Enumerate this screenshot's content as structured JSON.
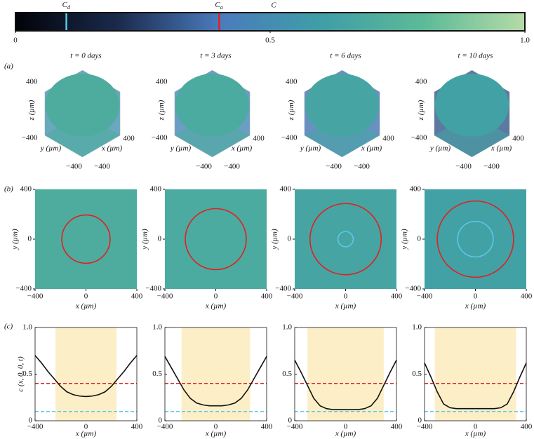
{
  "colorbar": {
    "range": [
      0,
      1
    ],
    "ticks": [
      0,
      0.5,
      {
        "value": 1,
        "label": "1.0"
      }
    ],
    "colormap": [
      "#020308",
      "#1a2a4c",
      "#4a7bbd",
      "#3f9ea6",
      "#5cba98",
      "#b5dba6"
    ],
    "label": "C",
    "markers": [
      {
        "symbol": "C",
        "subscript": "d",
        "value": 0.1,
        "color": "#5bc8e8"
      },
      {
        "symbol": "C",
        "subscript": "a",
        "value": 0.4,
        "color": "#e02020"
      }
    ]
  },
  "row_labels": [
    "(a)",
    "(b)",
    "(c)"
  ],
  "times": [
    "t = 0 days",
    "t = 3 days",
    "t = 6 days",
    "t = 10 days"
  ],
  "axes": {
    "x": "x (µm)",
    "y": "y (µm)",
    "z": "z (µm)",
    "c": "c (x, 0, 0, t)"
  },
  "space_lim": [
    -400,
    400
  ],
  "space_ticks": [
    {
      "value": -400,
      "label": "−400"
    },
    0,
    400
  ],
  "cube_ticks": [
    {
      "value": -400,
      "label": "−400"
    },
    400
  ],
  "c_lim": [
    0,
    1
  ],
  "c_ticks": [
    0,
    0.5,
    {
      "value": 1,
      "label": "1.0"
    }
  ],
  "profile_x": [
    -400,
    -350,
    -300,
    -250,
    -200,
    -150,
    -100,
    -50,
    0,
    50,
    100,
    150,
    200,
    250,
    300,
    350,
    400
  ],
  "profiles": [
    [
      0.7,
      0.62,
      0.53,
      0.45,
      0.37,
      0.31,
      0.28,
      0.265,
      0.26,
      0.265,
      0.28,
      0.31,
      0.37,
      0.45,
      0.53,
      0.62,
      0.7
    ],
    [
      0.69,
      0.57,
      0.45,
      0.33,
      0.24,
      0.19,
      0.17,
      0.16,
      0.16,
      0.16,
      0.17,
      0.19,
      0.24,
      0.33,
      0.45,
      0.57,
      0.69
    ],
    [
      0.65,
      0.52,
      0.38,
      0.24,
      0.16,
      0.13,
      0.12,
      0.12,
      0.12,
      0.12,
      0.12,
      0.13,
      0.16,
      0.24,
      0.38,
      0.52,
      0.65
    ],
    [
      0.62,
      0.47,
      0.31,
      0.18,
      0.14,
      0.13,
      0.13,
      0.13,
      0.13,
      0.13,
      0.13,
      0.13,
      0.14,
      0.18,
      0.31,
      0.47,
      0.62
    ]
  ],
  "tumor_extent": [
    [
      -240,
      240
    ],
    [
      -270,
      270
    ],
    [
      -300,
      300
    ],
    [
      -320,
      320
    ]
  ],
  "ca_radius": [
    190,
    240,
    280,
    300
  ],
  "cd_radius": [
    null,
    null,
    60,
    140
  ]
}
